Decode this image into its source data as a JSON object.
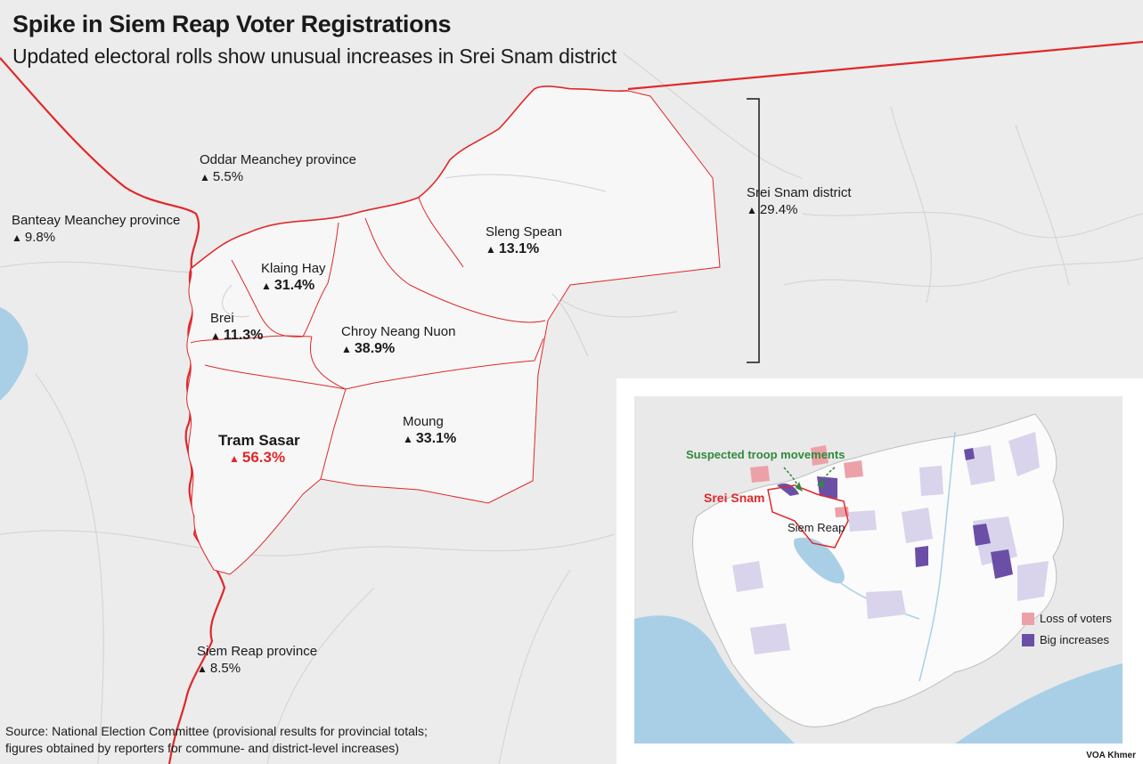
{
  "title": "Spike in Siem Reap Voter Registrations",
  "subtitle": "Updated electoral rolls show unusual increases in Srei Snam district",
  "colors": {
    "boundary": "#e0282a",
    "highlight_text": "#e0282a",
    "commune_fill": "#f7f7f7",
    "basemap": "#ececec",
    "water": "#a9cfe6",
    "loss_of_voters": "#eca1a8",
    "big_increases": "#6b4fa6",
    "moderate_increase": "#d9d4ec",
    "troop_arrow": "#2f8a3c"
  },
  "marker_icon": "up-triangle",
  "regions": {
    "oddar": {
      "name": "Oddar Meanchey province",
      "value": "5.5%"
    },
    "banteay": {
      "name": "Banteay Meanchey province",
      "value": "9.8%"
    },
    "siemreap": {
      "name": "Siem Reap province",
      "value": "8.5%"
    },
    "sreisnam": {
      "name": "Srei Snam district",
      "value": "29.4%"
    }
  },
  "communes": {
    "sleng_spean": {
      "name": "Sleng Spean",
      "value": "13.1%"
    },
    "klaing_hay": {
      "name": "Klaing Hay",
      "value": "31.4%"
    },
    "brei": {
      "name": "Brei",
      "value": "11.3%"
    },
    "choy_neang_nuon": {
      "name": "Chroy Neang Nuon",
      "value": "38.9%"
    },
    "moung": {
      "name": "Moung",
      "value": "33.1%"
    },
    "tram_sasar": {
      "name": "Tram Sasar",
      "value": "56.3%"
    }
  },
  "inset": {
    "troop_label": "Suspected troop movements",
    "srei_snam_label": "Srei Snam",
    "siem_reap_label": "Siem Reap",
    "legend": [
      {
        "label": "Loss of voters",
        "color": "#eca1a8"
      },
      {
        "label": "Big increases",
        "color": "#6b4fa6"
      }
    ]
  },
  "source_line1": "Source: National Election Committee (provisional results for provincial totals;",
  "source_line2": "figures obtained by reporters for commune- and district-level increases)",
  "credit": "VOA Khmer"
}
